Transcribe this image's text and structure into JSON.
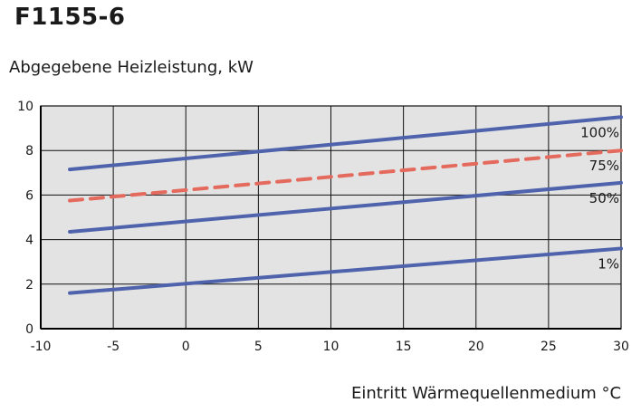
{
  "chart_data": {
    "type": "line",
    "title": "F1155-6",
    "ylabel": "Abgegebene Heizleistung, kW",
    "xlabel": "Eintritt Wärmequellenmedium °C",
    "xlim": [
      -10,
      30
    ],
    "ylim": [
      0,
      10
    ],
    "xticks": [
      -10,
      -5,
      0,
      5,
      10,
      15,
      20,
      25,
      30
    ],
    "yticks": [
      0,
      2,
      4,
      6,
      8,
      10
    ],
    "grid": true,
    "series": [
      {
        "name": "100%",
        "x": [
          -8,
          30
        ],
        "y": [
          7.15,
          9.5
        ],
        "color": "#4f63ad",
        "dash": false
      },
      {
        "name": "75%",
        "x": [
          -8,
          30
        ],
        "y": [
          5.75,
          8.0
        ],
        "color": "#e46a5e",
        "dash": true
      },
      {
        "name": "50%",
        "x": [
          -8,
          30
        ],
        "y": [
          4.35,
          6.55
        ],
        "color": "#4f63ad",
        "dash": false
      },
      {
        "name": "1%",
        "x": [
          -8,
          30
        ],
        "y": [
          1.6,
          3.6
        ],
        "color": "#4f63ad",
        "dash": false
      }
    ],
    "colors": {
      "plot_background": "#e3e3e3",
      "grid": "#111111"
    }
  }
}
